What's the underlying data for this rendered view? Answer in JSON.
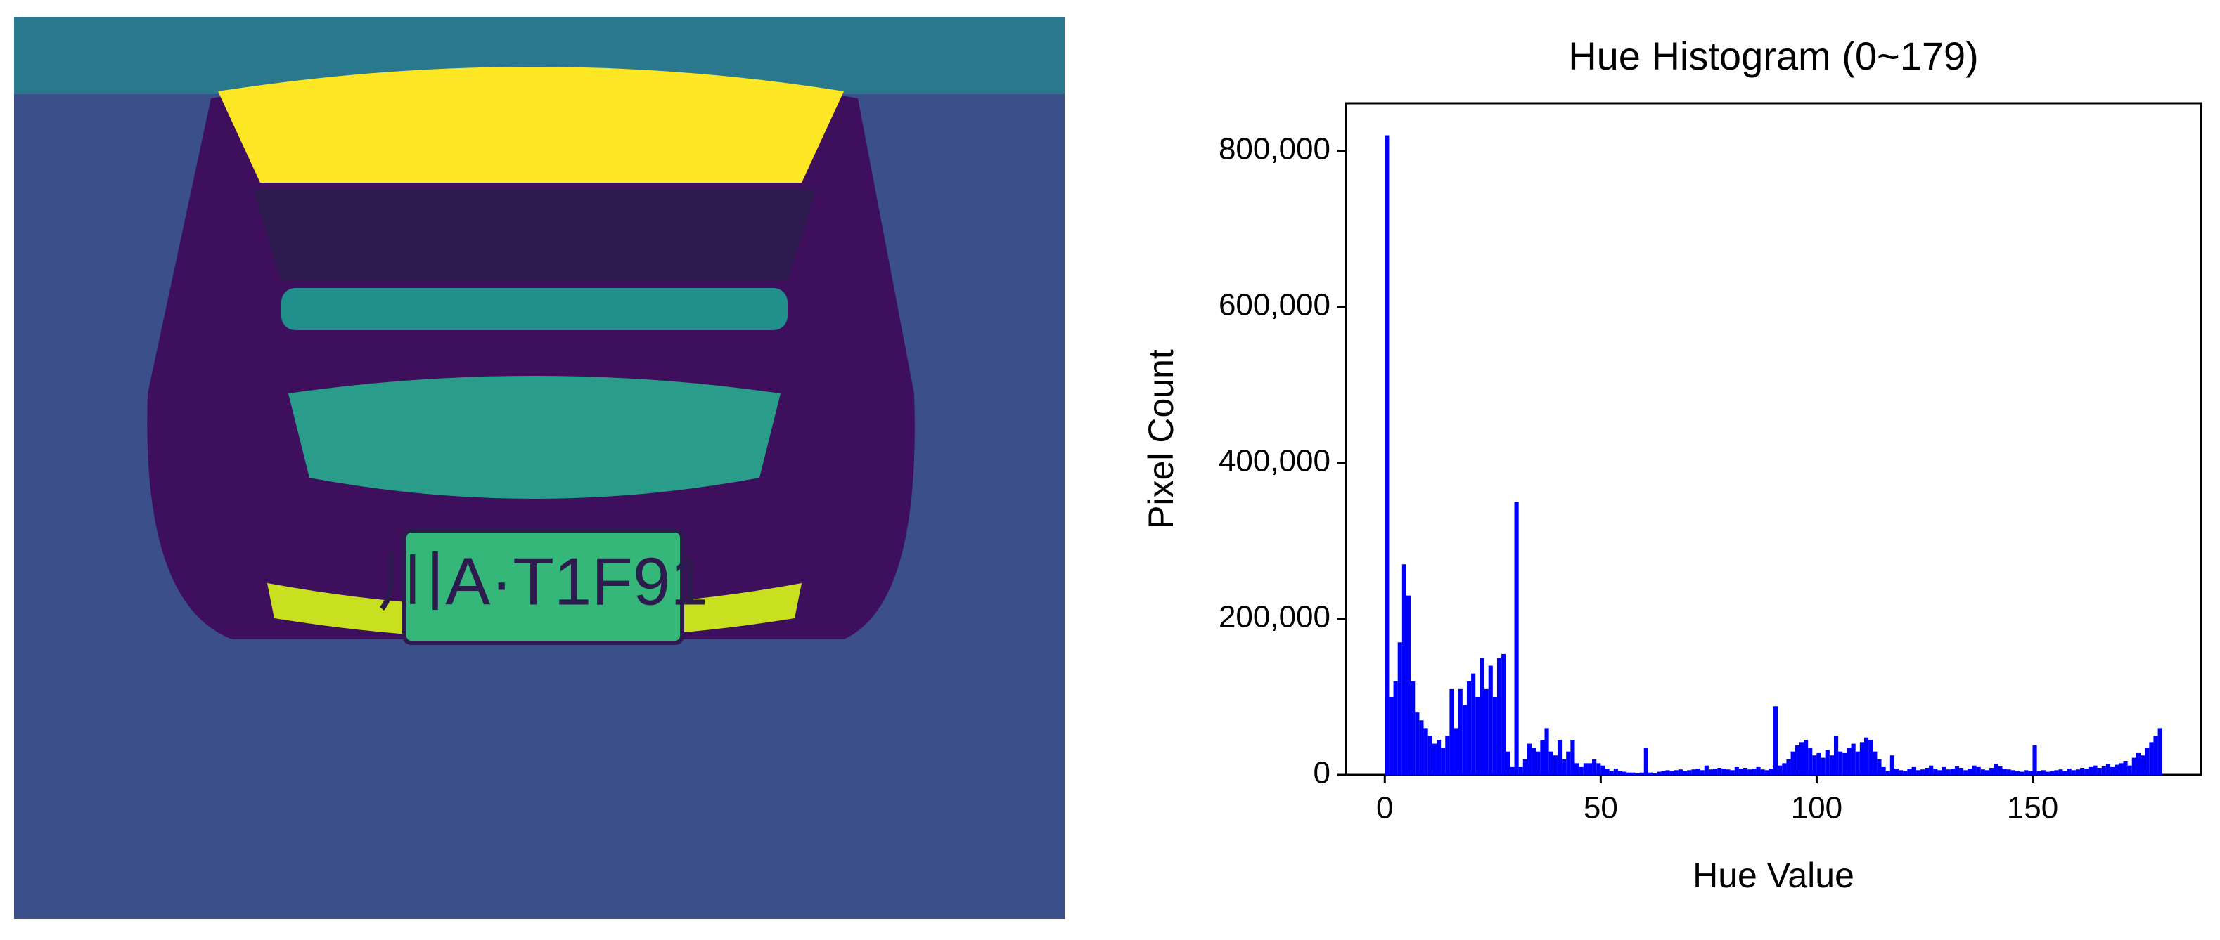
{
  "image": {
    "plate_text": "川A·T1F91"
  },
  "chart_data": {
    "type": "histogram",
    "title": "Hue Histogram (0~179)",
    "x_label": "Hue Value",
    "y_label": "Pixel Count",
    "color": "#0000ff",
    "bins": [
      0,
      1,
      2,
      3,
      4,
      5,
      6,
      7,
      8,
      9,
      10,
      11,
      12,
      13,
      14,
      15,
      16,
      17,
      18,
      19,
      20,
      21,
      22,
      23,
      24,
      25,
      26,
      27,
      28,
      29,
      30,
      31,
      32,
      33,
      34,
      35,
      36,
      37,
      38,
      39,
      40,
      41,
      42,
      43,
      44,
      45,
      46,
      47,
      48,
      49,
      50,
      51,
      52,
      53,
      54,
      55,
      56,
      57,
      58,
      59,
      60,
      61,
      62,
      63,
      64,
      65,
      66,
      67,
      68,
      69,
      70,
      71,
      72,
      73,
      74,
      75,
      76,
      77,
      78,
      79,
      80,
      81,
      82,
      83,
      84,
      85,
      86,
      87,
      88,
      89,
      90,
      91,
      92,
      93,
      94,
      95,
      96,
      97,
      98,
      99,
      100,
      101,
      102,
      103,
      104,
      105,
      106,
      107,
      108,
      109,
      110,
      111,
      112,
      113,
      114,
      115,
      116,
      117,
      118,
      119,
      120,
      121,
      122,
      123,
      124,
      125,
      126,
      127,
      128,
      129,
      130,
      131,
      132,
      133,
      134,
      135,
      136,
      137,
      138,
      139,
      140,
      141,
      142,
      143,
      144,
      145,
      146,
      147,
      148,
      149,
      150,
      151,
      152,
      153,
      154,
      155,
      156,
      157,
      158,
      159,
      160,
      161,
      162,
      163,
      164,
      165,
      166,
      167,
      168,
      169,
      170,
      171,
      172,
      173,
      174,
      175,
      176,
      177,
      178,
      179,
      180
    ],
    "values": [
      820000,
      100000,
      120000,
      170000,
      270000,
      230000,
      120000,
      80000,
      70000,
      60000,
      50000,
      40000,
      45000,
      35000,
      50000,
      110000,
      60000,
      110000,
      90000,
      120000,
      130000,
      100000,
      150000,
      110000,
      140000,
      100000,
      150000,
      155000,
      30000,
      10000,
      350000,
      10000,
      20000,
      40000,
      35000,
      30000,
      45000,
      60000,
      30000,
      25000,
      45000,
      20000,
      30000,
      45000,
      15000,
      10000,
      15000,
      15000,
      20000,
      15000,
      12000,
      8000,
      5000,
      8000,
      5000,
      4000,
      3000,
      3000,
      2000,
      3000,
      35000,
      3000,
      2000,
      4000,
      5000,
      6000,
      5000,
      6000,
      7000,
      5000,
      6000,
      7000,
      8000,
      6000,
      12000,
      7000,
      8000,
      9000,
      8000,
      7000,
      6000,
      10000,
      8000,
      9000,
      7000,
      8000,
      10000,
      7000,
      6000,
      8000,
      88000,
      12000,
      15000,
      20000,
      30000,
      38000,
      42000,
      45000,
      35000,
      25000,
      28000,
      22000,
      32000,
      25000,
      50000,
      30000,
      28000,
      35000,
      40000,
      30000,
      42000,
      48000,
      45000,
      30000,
      20000,
      10000,
      5000,
      25000,
      8000,
      6000,
      5000,
      8000,
      10000,
      6000,
      7000,
      9000,
      12000,
      8000,
      6000,
      10000,
      7000,
      8000,
      11000,
      9000,
      6000,
      8000,
      12000,
      10000,
      7000,
      6000,
      9000,
      14000,
      11000,
      8000,
      7000,
      6000,
      5000,
      4000,
      6000,
      5000,
      38000,
      5000,
      6000,
      4000,
      5000,
      6000,
      7000,
      5000,
      8000,
      6000,
      7000,
      9000,
      8000,
      10000,
      12000,
      9000,
      11000,
      14000,
      10000,
      13000,
      15000,
      18000,
      12000,
      22000,
      28000,
      25000,
      35000,
      42000,
      50000,
      60000
    ],
    "xlim": [
      -9,
      189
    ],
    "ylim": [
      0,
      861000
    ],
    "xticks": [
      0,
      50,
      100,
      150
    ],
    "yticks": [
      0,
      {
        "value": 200000,
        "label": "200,000"
      },
      {
        "value": 400000,
        "label": "400,000"
      },
      {
        "value": 600000,
        "label": "600,000"
      },
      {
        "value": 800000,
        "label": "800,000"
      }
    ]
  }
}
